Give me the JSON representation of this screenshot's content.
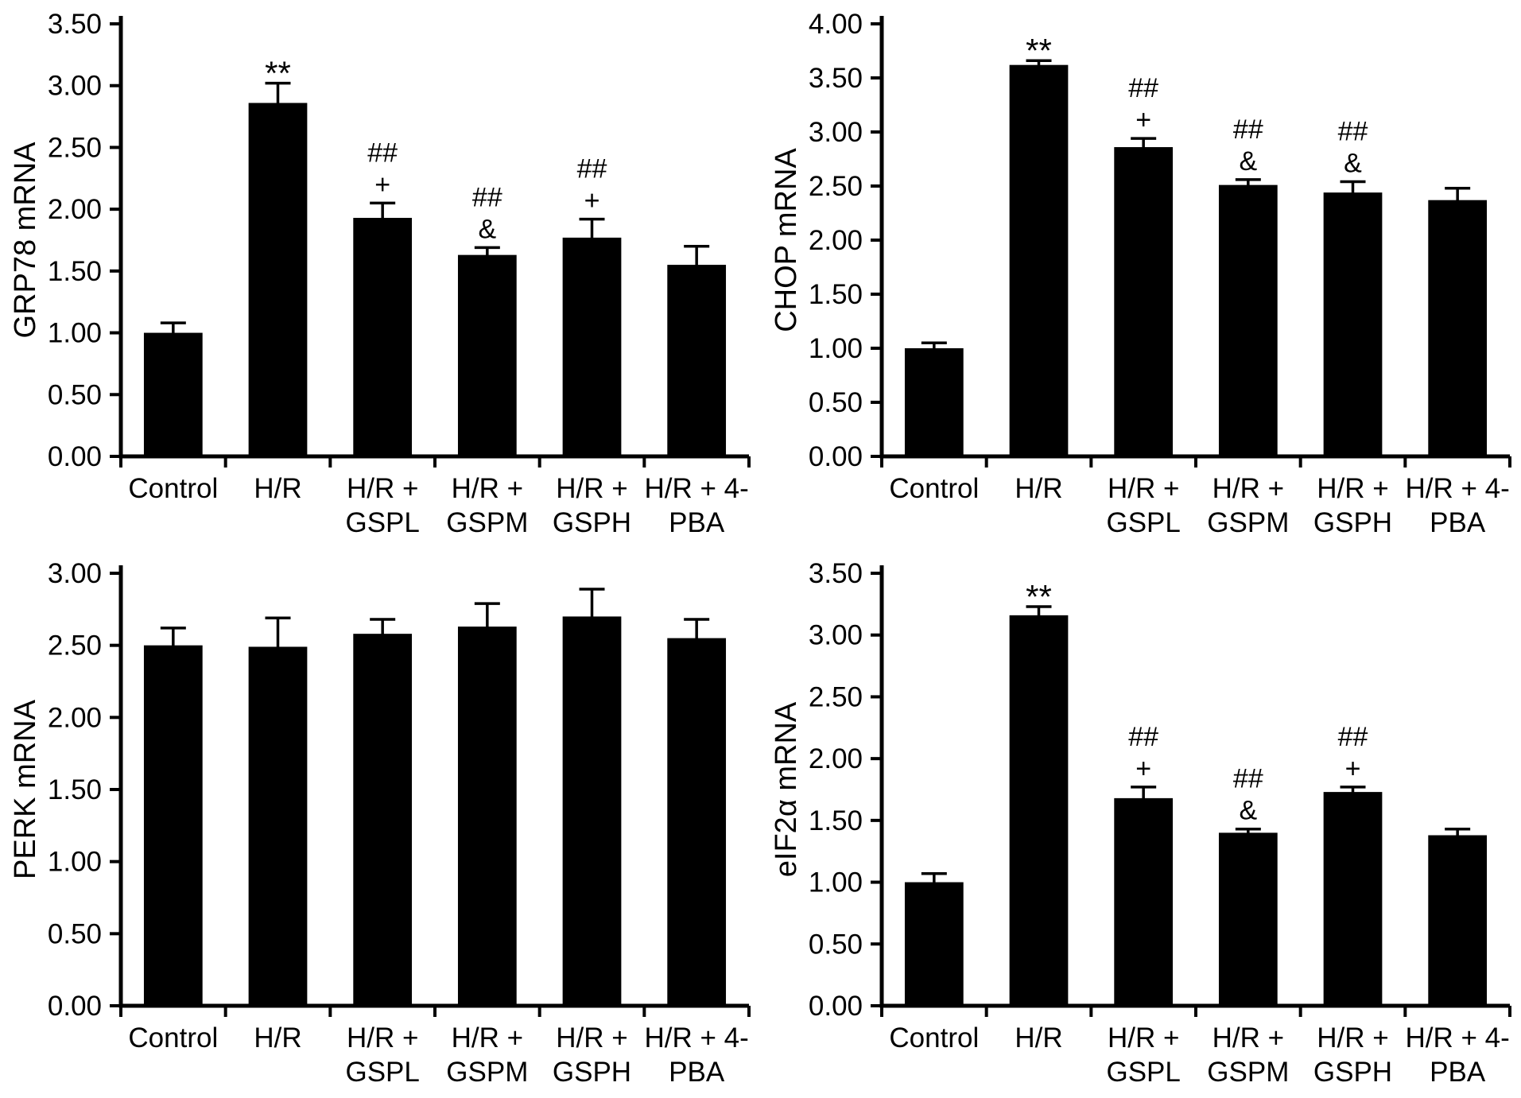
{
  "figure": {
    "background_color": "#ffffff",
    "bar_color": "#000000",
    "axis_color": "#000000",
    "text_color": "#000000"
  },
  "chart_data": [
    {
      "id": "grp78",
      "type": "bar",
      "title": "",
      "xlabel": "",
      "ylabel": "GRP78 mRNA",
      "ylim": [
        0,
        3.5
      ],
      "ytick_step": 0.5,
      "ytick_labels": [
        "0.00",
        "0.50",
        "1.00",
        "1.50",
        "2.00",
        "2.50",
        "3.00",
        "3.50"
      ],
      "grid": false,
      "legend": "none",
      "categories": [
        [
          "Control"
        ],
        [
          "H/R"
        ],
        [
          "H/R +",
          "GSPL"
        ],
        [
          "H/R +",
          "GSPM"
        ],
        [
          "H/R +",
          "GSPH"
        ],
        [
          "H/R + 4-",
          "PBA"
        ]
      ],
      "values": [
        1.0,
        2.86,
        1.93,
        1.63,
        1.77,
        1.55
      ],
      "errors": [
        0.08,
        0.16,
        0.12,
        0.06,
        0.15,
        0.15
      ],
      "annotations": [
        [],
        [
          "**"
        ],
        [
          "##",
          "+"
        ],
        [
          "##",
          "&"
        ],
        [
          "##",
          "+"
        ],
        []
      ]
    },
    {
      "id": "chop",
      "type": "bar",
      "title": "",
      "xlabel": "",
      "ylabel": "CHOP mRNA",
      "ylim": [
        0,
        4.0
      ],
      "ytick_step": 0.5,
      "ytick_labels": [
        "0.00",
        "0.50",
        "1.00",
        "1.50",
        "2.00",
        "2.50",
        "3.00",
        "3.50",
        "4.00"
      ],
      "grid": false,
      "legend": "none",
      "categories": [
        [
          "Control"
        ],
        [
          "H/R"
        ],
        [
          "H/R +",
          "GSPL"
        ],
        [
          "H/R +",
          "GSPM"
        ],
        [
          "H/R +",
          "GSPH"
        ],
        [
          "H/R + 4-",
          "PBA"
        ]
      ],
      "values": [
        1.0,
        3.62,
        2.86,
        2.51,
        2.44,
        2.37
      ],
      "errors": [
        0.05,
        0.04,
        0.08,
        0.05,
        0.1,
        0.11
      ],
      "annotations": [
        [],
        [
          "**"
        ],
        [
          "##",
          "+"
        ],
        [
          "##",
          "&"
        ],
        [
          "##",
          "&"
        ],
        []
      ]
    },
    {
      "id": "perk",
      "type": "bar",
      "title": "",
      "xlabel": "",
      "ylabel": "PERK mRNA",
      "ylim": [
        0,
        3.0
      ],
      "ytick_step": 0.5,
      "ytick_labels": [
        "0.00",
        "0.50",
        "1.00",
        "1.50",
        "2.00",
        "2.50",
        "3.00"
      ],
      "grid": false,
      "legend": "none",
      "categories": [
        [
          "Control"
        ],
        [
          "H/R"
        ],
        [
          "H/R +",
          "GSPL"
        ],
        [
          "H/R +",
          "GSPM"
        ],
        [
          "H/R +",
          "GSPH"
        ],
        [
          "H/R + 4-",
          "PBA"
        ]
      ],
      "values": [
        2.5,
        2.49,
        2.58,
        2.63,
        2.7,
        2.55
      ],
      "errors": [
        0.12,
        0.2,
        0.1,
        0.16,
        0.19,
        0.13
      ],
      "annotations": [
        [],
        [],
        [],
        [],
        [],
        []
      ]
    },
    {
      "id": "eif2a",
      "type": "bar",
      "title": "",
      "xlabel": "",
      "ylabel": "eIF2α mRNA",
      "ylim": [
        0,
        3.5
      ],
      "ytick_step": 0.5,
      "ytick_labels": [
        "0.00",
        "0.50",
        "1.00",
        "1.50",
        "2.00",
        "2.50",
        "3.00",
        "3.50"
      ],
      "grid": false,
      "legend": "none",
      "categories": [
        [
          "Control"
        ],
        [
          "H/R"
        ],
        [
          "H/R +",
          "GSPL"
        ],
        [
          "H/R +",
          "GSPM"
        ],
        [
          "H/R +",
          "GSPH"
        ],
        [
          "H/R + 4-",
          "PBA"
        ]
      ],
      "values": [
        1.0,
        3.16,
        1.68,
        1.4,
        1.73,
        1.38
      ],
      "errors": [
        0.07,
        0.07,
        0.09,
        0.03,
        0.04,
        0.05
      ],
      "annotations": [
        [],
        [
          "**"
        ],
        [
          "##",
          "+"
        ],
        [
          "##",
          "&"
        ],
        [
          "##",
          "+"
        ],
        []
      ]
    }
  ]
}
